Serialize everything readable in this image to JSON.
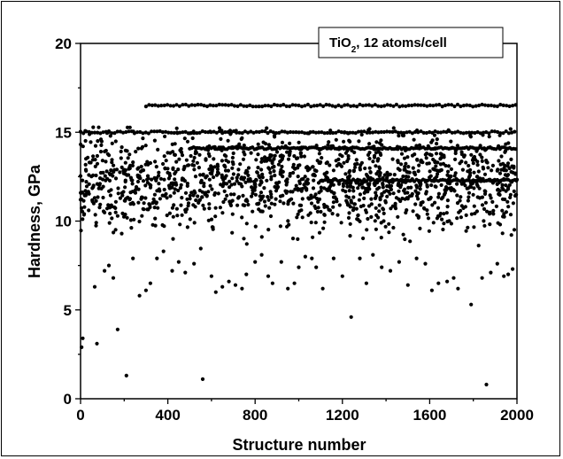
{
  "chart_data": {
    "type": "scatter",
    "title": "",
    "xlabel": "Structure number",
    "ylabel": "Hardness, GPa",
    "xlim": [
      0,
      2000
    ],
    "ylim": [
      0,
      20
    ],
    "xticks": [
      0,
      400,
      800,
      1200,
      1600,
      2000
    ],
    "yticks": [
      0,
      5,
      10,
      15,
      20
    ],
    "grid": false,
    "legend": {
      "position": "top-right",
      "text_main": "TiO",
      "text_sub": "2",
      "text_rest": ", 12 atoms/cell"
    },
    "marker_color": "#000000",
    "series": [
      {
        "name": "",
        "points": [
          [
            5,
            2.9
          ],
          [
            10,
            3.4
          ],
          [
            65,
            6.3
          ],
          [
            75,
            3.1
          ],
          [
            110,
            7.2
          ],
          [
            130,
            7.5
          ],
          [
            150,
            6.8
          ],
          [
            170,
            3.9
          ],
          [
            210,
            1.3
          ],
          [
            240,
            7.9
          ],
          [
            270,
            5.8
          ],
          [
            300,
            6.1
          ],
          [
            320,
            6.5
          ],
          [
            350,
            7.9
          ],
          [
            380,
            8.3
          ],
          [
            420,
            7.2
          ],
          [
            450,
            7.7
          ],
          [
            480,
            7.1
          ],
          [
            520,
            7.6
          ],
          [
            560,
            1.1
          ],
          [
            600,
            6.9
          ],
          [
            620,
            6.0
          ],
          [
            650,
            6.3
          ],
          [
            680,
            6.6
          ],
          [
            710,
            6.4
          ],
          [
            740,
            6.2
          ],
          [
            760,
            7.0
          ],
          [
            800,
            7.7
          ],
          [
            830,
            8.1
          ],
          [
            860,
            6.9
          ],
          [
            880,
            6.5
          ],
          [
            920,
            7.7
          ],
          [
            950,
            6.2
          ],
          [
            980,
            6.5
          ],
          [
            1000,
            7.4
          ],
          [
            1030,
            8.0
          ],
          [
            1060,
            7.9
          ],
          [
            1080,
            7.4
          ],
          [
            1110,
            6.2
          ],
          [
            1160,
            7.9
          ],
          [
            1200,
            6.9
          ],
          [
            1240,
            4.6
          ],
          [
            1280,
            7.9
          ],
          [
            1310,
            6.5
          ],
          [
            1340,
            8.1
          ],
          [
            1380,
            7.4
          ],
          [
            1420,
            7.2
          ],
          [
            1460,
            7.7
          ],
          [
            1500,
            6.4
          ],
          [
            1540,
            7.9
          ],
          [
            1580,
            7.6
          ],
          [
            1610,
            6.1
          ],
          [
            1640,
            6.5
          ],
          [
            1680,
            6.6
          ],
          [
            1710,
            6.8
          ],
          [
            1730,
            6.2
          ],
          [
            1790,
            5.3
          ],
          [
            1840,
            6.8
          ],
          [
            1860,
            0.8
          ],
          [
            1880,
            7.1
          ],
          [
            1910,
            7.6
          ],
          [
            1940,
            6.9
          ],
          [
            1960,
            7.0
          ],
          [
            1980,
            7.3
          ]
        ]
      }
    ],
    "bands": [
      {
        "y": 16.5,
        "x_start": 300,
        "x_end": 2000,
        "spacing": 14
      },
      {
        "y": 15.0,
        "x_start": 0,
        "x_end": 2000,
        "spacing": 13
      },
      {
        "y": 14.1,
        "x_start": 500,
        "x_end": 2000,
        "spacing": 9
      },
      {
        "y": 12.3,
        "x_start": 1100,
        "x_end": 2000,
        "spacing": 10
      }
    ],
    "cloud": {
      "count": 1500,
      "x_range": [
        0,
        2000
      ],
      "y_center": 12.2,
      "y_spread": 2.6,
      "seed": 7
    }
  }
}
